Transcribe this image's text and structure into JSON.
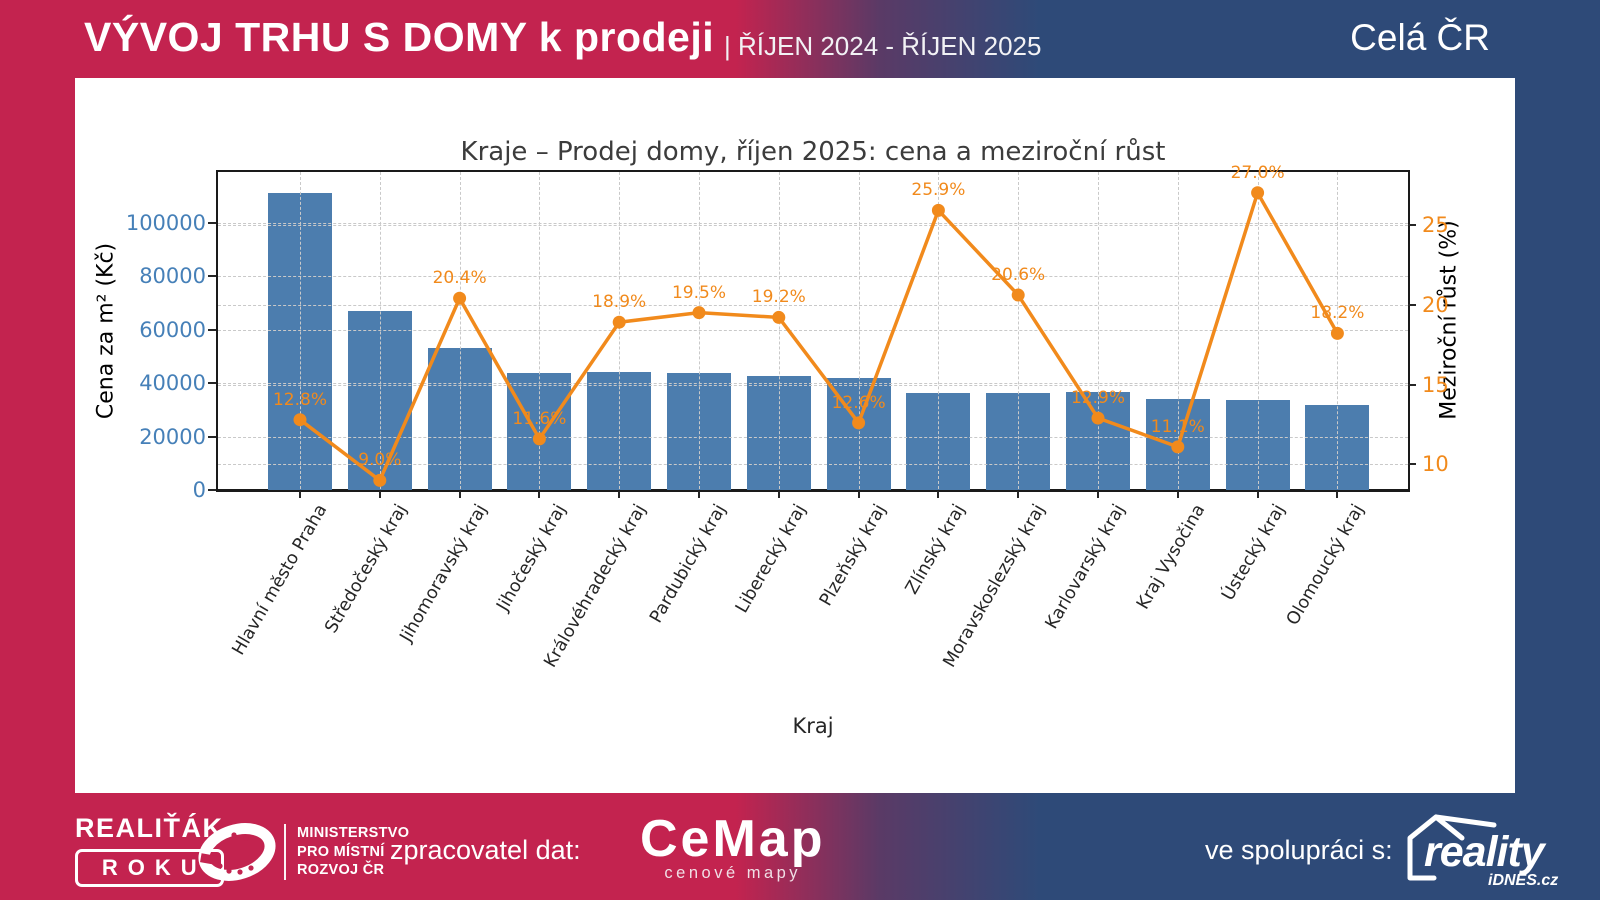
{
  "header": {
    "title": "VÝVOJ TRHU S DOMY k prodeji",
    "subtitle": "| ŘÍJEN 2024 - ŘÍJEN 2025",
    "region": "Celá ČR"
  },
  "chart_data": {
    "type": "bar",
    "title": "Kraje – Prodej domy, říjen 2025: cena a meziroční růst",
    "categories": [
      "Hlavní město Praha",
      "Středočeský kraj",
      "Jihomoravský kraj",
      "Jihočeský kraj",
      "Královéhradecký kraj",
      "Pardubický kraj",
      "Liberecký kraj",
      "Plzeňský kraj",
      "Zlínský kraj",
      "Moravskoslezský kraj",
      "Karlovarský kraj",
      "Kraj Vysočina",
      "Ústecký kraj",
      "Olomoucký kraj"
    ],
    "series": [
      {
        "name": "Cena za m² (Kč)",
        "type": "bar",
        "axis": "left",
        "color": "#4c7dae",
        "values": [
          111000,
          67000,
          53000,
          43600,
          44000,
          43700,
          42700,
          41900,
          36400,
          36400,
          36600,
          34200,
          33600,
          31700
        ]
      },
      {
        "name": "Meziroční růst (%)",
        "type": "line",
        "axis": "right",
        "color": "#f18a1c",
        "values": [
          12.8,
          9.0,
          20.4,
          11.6,
          18.9,
          19.5,
          19.2,
          12.6,
          25.9,
          20.6,
          12.9,
          11.1,
          27.0,
          18.2
        ]
      }
    ],
    "xlabel": "Kraj",
    "ylabel_left": "Cena za m² (Kč)",
    "ylabel_right": "Meziroční růst (%)",
    "yticks_left": [
      0,
      20000,
      40000,
      60000,
      80000,
      100000
    ],
    "yticks_right": [
      10,
      15,
      20,
      25
    ],
    "ylim_left": [
      0,
      119000
    ],
    "ylim_right": [
      8.4,
      28.3
    ],
    "grid": true,
    "legend_position": "none",
    "colors": {
      "left_axis": "#4680b8",
      "right_axis": "#f18a1c",
      "grid": "#c9c9c9",
      "tick": "#262626"
    }
  },
  "footer": {
    "award_title": "REALIŤÁK",
    "award_badge": "ROKU",
    "ministry_line1": "MINISTERSTVO",
    "ministry_line2": "PRO MÍSTNÍ",
    "ministry_line3": "ROZVOJ ČR",
    "data_label": "zpracovatel dat:",
    "cemap_name": "CeMap",
    "cemap_sub": "cenové mapy",
    "partner_label": "ve spolupráci s:",
    "reality_name": "reality",
    "reality_sub": "iDNES.cz"
  },
  "colors": {
    "crimson": "#c3234f",
    "navy": "#2e4a78",
    "card": "#ffffff"
  }
}
